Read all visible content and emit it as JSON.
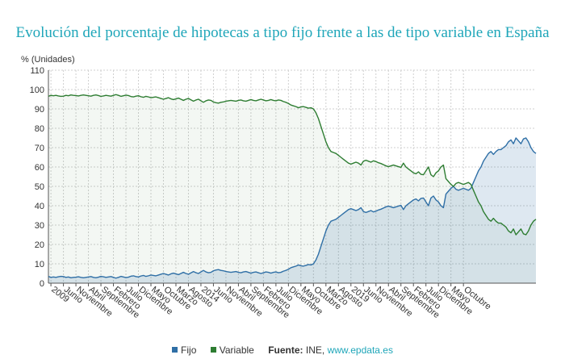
{
  "chart_data": {
    "type": "area",
    "title": "Evolución del porcentaje de hipotecas a tipo fijo frente a las de tipo variable en España",
    "ylabel": "% (Unidades)",
    "ylim": [
      0,
      110
    ],
    "yticks": [
      0,
      10,
      20,
      30,
      40,
      50,
      60,
      70,
      80,
      90,
      100,
      110
    ],
    "x_start": "2009-01",
    "x_end": "2023-10",
    "x_tick_labels": [
      "2009",
      "Junio",
      "Noviembre",
      "Abril",
      "Septiembre",
      "Febrero",
      "Julio",
      "Diciembre",
      "Mayo",
      "Octubre",
      "Marzo",
      "Agosto",
      "2014",
      "Junio",
      "Noviembre",
      "Abril",
      "Septiembre",
      "Febrero",
      "Julio",
      "Diciembre",
      "Mayo",
      "Octubre",
      "Marzo",
      "Agosto",
      "2019",
      "Junio",
      "Noviembre",
      "Abril",
      "Septiembre",
      "Febrero",
      "Julio",
      "Diciembre",
      "Mayo",
      "Octubre"
    ],
    "grid": true,
    "legend_position": "bottom",
    "series": [
      {
        "name": "Fijo",
        "color": "#2f6fa6",
        "values": [
          3.5,
          3.0,
          3.2,
          3.0,
          3.3,
          3.5,
          3.4,
          3.0,
          3.2,
          2.8,
          3.0,
          3.1,
          3.3,
          3.0,
          2.8,
          3.0,
          3.2,
          3.4,
          3.0,
          2.8,
          3.1,
          3.5,
          3.3,
          3.0,
          3.2,
          3.4,
          3.0,
          2.6,
          3.0,
          3.5,
          3.2,
          2.9,
          3.1,
          3.6,
          3.8,
          3.4,
          3.2,
          3.7,
          4.0,
          3.5,
          3.8,
          4.2,
          4.0,
          3.8,
          4.2,
          4.6,
          5.0,
          4.6,
          4.2,
          4.8,
          5.2,
          4.8,
          4.4,
          5.0,
          5.6,
          5.0,
          4.6,
          5.3,
          6.0,
          5.4,
          5.0,
          5.8,
          6.6,
          5.8,
          5.4,
          5.6,
          6.4,
          6.8,
          7.0,
          6.6,
          6.4,
          6.0,
          5.8,
          5.6,
          5.8,
          6.0,
          5.6,
          5.4,
          5.8,
          6.0,
          5.6,
          5.2,
          5.6,
          5.8,
          5.4,
          5.0,
          5.4,
          5.8,
          5.6,
          5.2,
          5.6,
          5.8,
          5.4,
          5.6,
          6.2,
          6.6,
          7.2,
          8.0,
          8.4,
          8.8,
          9.4,
          9.0,
          8.8,
          9.2,
          9.6,
          9.4,
          10.0,
          12.0,
          15.0,
          19.0,
          23.0,
          27.0,
          30.0,
          32.0,
          32.5,
          33.0,
          34.0,
          35.0,
          36.0,
          37.0,
          38.0,
          38.5,
          38.0,
          37.5,
          38.0,
          39.0,
          37.0,
          36.5,
          37.0,
          37.5,
          36.8,
          37.2,
          37.8,
          38.2,
          38.8,
          39.4,
          39.8,
          39.4,
          39.0,
          39.4,
          39.8,
          40.2,
          38.0,
          40.0,
          41.0,
          42.0,
          43.0,
          43.5,
          42.5,
          43.8,
          44.0,
          42.0,
          40.0,
          44.0,
          45.0,
          43.0,
          42.0,
          40.0,
          39.0,
          46.0,
          47.5,
          49.0,
          50.0,
          48.5,
          48.0,
          48.5,
          49.0,
          48.5,
          48.0,
          49.0,
          52.0,
          55.0,
          58.0,
          60.0,
          63.0,
          65.0,
          67.0,
          68.0,
          66.5,
          68.0,
          69.0,
          69.0,
          70.0,
          71.0,
          73.0,
          74.0,
          72.0,
          75.0,
          73.5,
          72.0,
          74.5,
          75.0,
          73.0,
          70.0,
          68.0,
          67.0
        ]
      },
      {
        "name": "Variable",
        "color": "#2e7d32",
        "values": [
          96.5,
          97.0,
          96.8,
          97.0,
          96.7,
          96.5,
          96.6,
          97.0,
          96.8,
          97.2,
          97.0,
          96.9,
          96.7,
          97.0,
          97.2,
          97.0,
          96.8,
          96.6,
          97.0,
          97.2,
          96.9,
          96.5,
          96.7,
          97.0,
          96.8,
          96.6,
          97.0,
          97.4,
          97.0,
          96.5,
          96.8,
          97.1,
          96.9,
          96.4,
          96.2,
          96.6,
          96.8,
          96.3,
          96.0,
          96.5,
          96.2,
          95.8,
          96.0,
          96.2,
          95.8,
          95.4,
          95.0,
          95.4,
          95.8,
          95.2,
          94.8,
          95.2,
          95.6,
          95.0,
          94.4,
          95.0,
          95.4,
          94.7,
          94.0,
          94.6,
          95.0,
          94.2,
          93.4,
          94.2,
          94.6,
          94.4,
          93.6,
          93.2,
          93.0,
          93.4,
          93.6,
          94.0,
          94.2,
          94.4,
          94.2,
          94.0,
          94.4,
          94.6,
          94.2,
          94.0,
          94.4,
          94.8,
          94.4,
          94.2,
          94.6,
          95.0,
          94.6,
          94.2,
          94.4,
          94.8,
          94.4,
          94.2,
          94.6,
          94.4,
          93.8,
          93.4,
          92.8,
          92.0,
          91.6,
          91.2,
          90.6,
          91.0,
          91.2,
          90.8,
          90.4,
          90.6,
          90.0,
          88.0,
          85.0,
          81.0,
          77.0,
          73.0,
          70.0,
          68.0,
          67.5,
          67.0,
          66.0,
          65.0,
          64.0,
          63.0,
          62.0,
          61.5,
          62.0,
          62.5,
          62.0,
          61.0,
          63.0,
          63.5,
          63.0,
          62.5,
          63.2,
          62.8,
          62.2,
          61.8,
          61.2,
          60.6,
          60.2,
          60.6,
          61.0,
          60.6,
          60.2,
          59.8,
          62.0,
          60.0,
          59.0,
          58.0,
          57.0,
          56.5,
          57.5,
          56.2,
          56.0,
          58.0,
          60.0,
          56.0,
          55.0,
          57.0,
          58.0,
          60.0,
          61.0,
          54.0,
          52.5,
          51.0,
          50.0,
          51.5,
          52.0,
          51.5,
          51.0,
          51.5,
          52.0,
          51.0,
          48.0,
          45.0,
          42.0,
          40.0,
          37.0,
          35.0,
          33.0,
          32.0,
          33.5,
          32.0,
          31.0,
          31.0,
          30.0,
          29.0,
          27.0,
          26.0,
          28.0,
          25.0,
          26.5,
          28.0,
          25.5,
          25.0,
          27.0,
          30.0,
          32.0,
          33.0
        ]
      }
    ]
  },
  "legend": {
    "items": [
      {
        "label": "Fijo",
        "color": "#2f6fa6"
      },
      {
        "label": "Variable",
        "color": "#2e7d32"
      }
    ],
    "source_label": "Fuente:",
    "source_text": "INE,",
    "source_link": "www.epdata.es"
  }
}
